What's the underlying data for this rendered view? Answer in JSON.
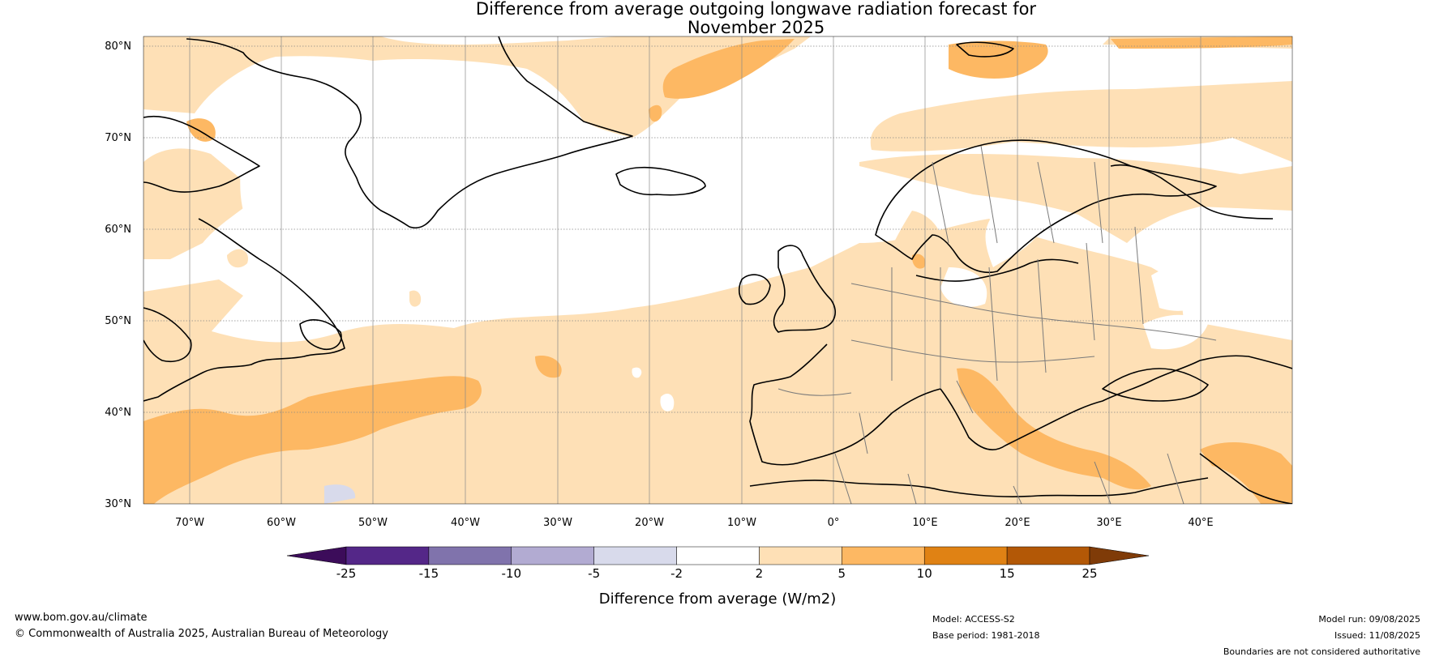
{
  "title": {
    "line1": "Difference from average outgoing longwave radiation forecast for",
    "line2": "November 2025"
  },
  "map": {
    "lat_ticks": [
      "80°N",
      "70°N",
      "60°N",
      "50°N",
      "40°N",
      "30°N"
    ],
    "lon_ticks": [
      "70°W",
      "60°W",
      "50°W",
      "40°W",
      "30°W",
      "20°W",
      "10°W",
      "0°",
      "10°E",
      "20°E",
      "30°E",
      "40°E"
    ],
    "extent": {
      "lon_min": -75,
      "lon_max": 50,
      "lat_min": 30,
      "lat_max": 81
    }
  },
  "colorbar": {
    "title": "Difference from average (W/m2)",
    "boundaries": [
      "-25",
      "-15",
      "-10",
      "-5",
      "-2",
      "2",
      "5",
      "10",
      "15",
      "25"
    ],
    "colors": {
      "below": "#3c0c5a",
      "bins": [
        "#542788",
        "#8073ac",
        "#b2abd2",
        "#d8daeb",
        "#ffffff",
        "#fee0b6",
        "#fdb863",
        "#e08214",
        "#b35806"
      ],
      "above": "#7f3b08"
    }
  },
  "footer": {
    "website": "www.bom.gov.au/climate",
    "copyright": "© Commonwealth of Australia 2025, Australian Bureau of Meteorology",
    "model": "Model: ACCESS-S2",
    "base_period": "Base period: 1981-2018",
    "model_run": "Model run: 09/08/2025",
    "issued": "Issued: 11/08/2025",
    "disclaimer": "Boundaries are not considered authoritative"
  }
}
